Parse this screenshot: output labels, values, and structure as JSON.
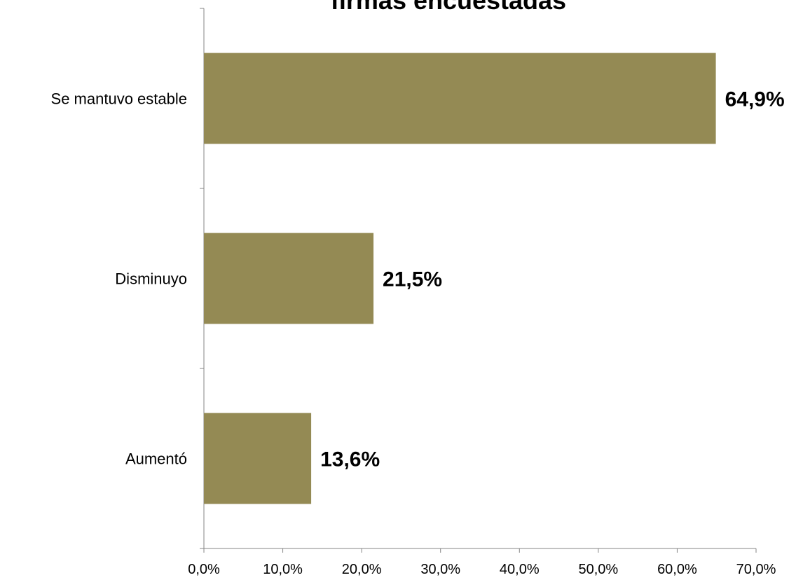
{
  "chart_data": {
    "type": "barh",
    "title": "firmas encuestadas",
    "categories": [
      "Se mantuvo estable",
      "Disminuyo",
      "Aumentó"
    ],
    "values": [
      64.9,
      21.5,
      13.6
    ],
    "value_labels": [
      "64,9%",
      "21,5%",
      "13,6%"
    ],
    "color": "#948a54",
    "xlim": [
      0,
      70
    ],
    "xticks": [
      {
        "value": 0,
        "label": "0,0%"
      },
      {
        "value": 10,
        "label": "10,0%"
      },
      {
        "value": 20,
        "label": "20,0%"
      },
      {
        "value": 30,
        "label": "30,0%"
      },
      {
        "value": 40,
        "label": "40,0%"
      },
      {
        "value": 50,
        "label": "50,0%"
      },
      {
        "value": 60,
        "label": "60,0%"
      },
      {
        "value": 70,
        "label": "70,0%"
      }
    ],
    "grid": false
  }
}
